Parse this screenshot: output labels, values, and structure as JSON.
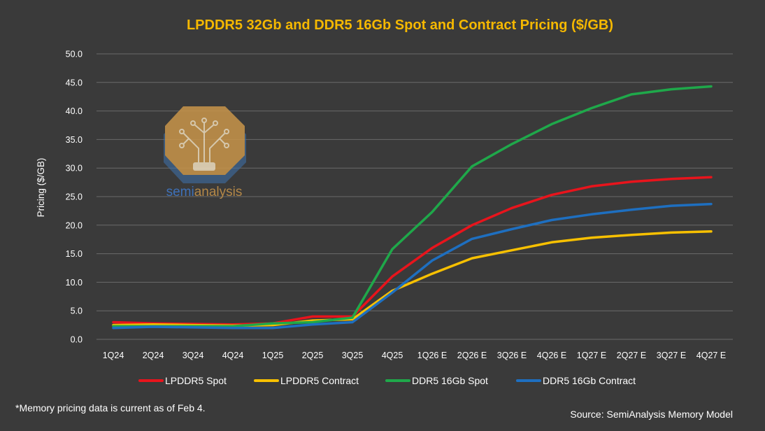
{
  "chart_data": {
    "type": "line",
    "title": "LPDDR5 32Gb and DDR5 16Gb Spot and Contract Pricing ($/GB)",
    "ylabel": "Pricing ($/GB)",
    "xlabel": "",
    "ylim": [
      0,
      50
    ],
    "yticks": [
      "0.0",
      "5.0",
      "10.0",
      "15.0",
      "20.0",
      "25.0",
      "30.0",
      "35.0",
      "40.0",
      "45.0",
      "50.0"
    ],
    "grid": true,
    "legend_position": "bottom",
    "categories": [
      "1Q24",
      "2Q24",
      "3Q24",
      "4Q24",
      "1Q25",
      "2Q25",
      "3Q25",
      "4Q25",
      "1Q26 E",
      "2Q26 E",
      "3Q26 E",
      "4Q26 E",
      "1Q27 E",
      "2Q27 E",
      "3Q27 E",
      "4Q27 E"
    ],
    "series": [
      {
        "name": "LPDDR5 Spot",
        "color": "#e8141c",
        "values": [
          3.0,
          2.8,
          2.7,
          2.6,
          2.8,
          4.0,
          4.0,
          11.0,
          16.0,
          20.0,
          23.0,
          25.3,
          26.8,
          27.6,
          28.1,
          28.4
        ]
      },
      {
        "name": "LPDDR5 Contract",
        "color": "#f7c000",
        "values": [
          2.5,
          2.6,
          2.5,
          2.4,
          2.5,
          3.3,
          3.5,
          8.5,
          11.5,
          14.2,
          15.6,
          17.0,
          17.8,
          18.3,
          18.7,
          18.9
        ]
      },
      {
        "name": "DDR5 16Gb Spot",
        "color": "#1fa84a",
        "values": [
          2.3,
          2.3,
          2.3,
          2.3,
          2.8,
          3.0,
          3.8,
          15.8,
          22.3,
          30.3,
          34.2,
          37.7,
          40.5,
          42.9,
          43.8,
          44.3
        ]
      },
      {
        "name": "DDR5 16Gb Contract",
        "color": "#1e6fc0",
        "values": [
          2.0,
          2.2,
          2.1,
          2.0,
          2.0,
          2.6,
          3.0,
          8.2,
          13.8,
          17.6,
          19.3,
          20.9,
          21.9,
          22.7,
          23.4,
          23.7
        ]
      }
    ]
  },
  "logo": {
    "text_prefix": "semi",
    "text_suffix": "analysis"
  },
  "footnote": "*Memory pricing data is current as of Feb 4.",
  "source": "Source: SemiAnalysis Memory Model"
}
